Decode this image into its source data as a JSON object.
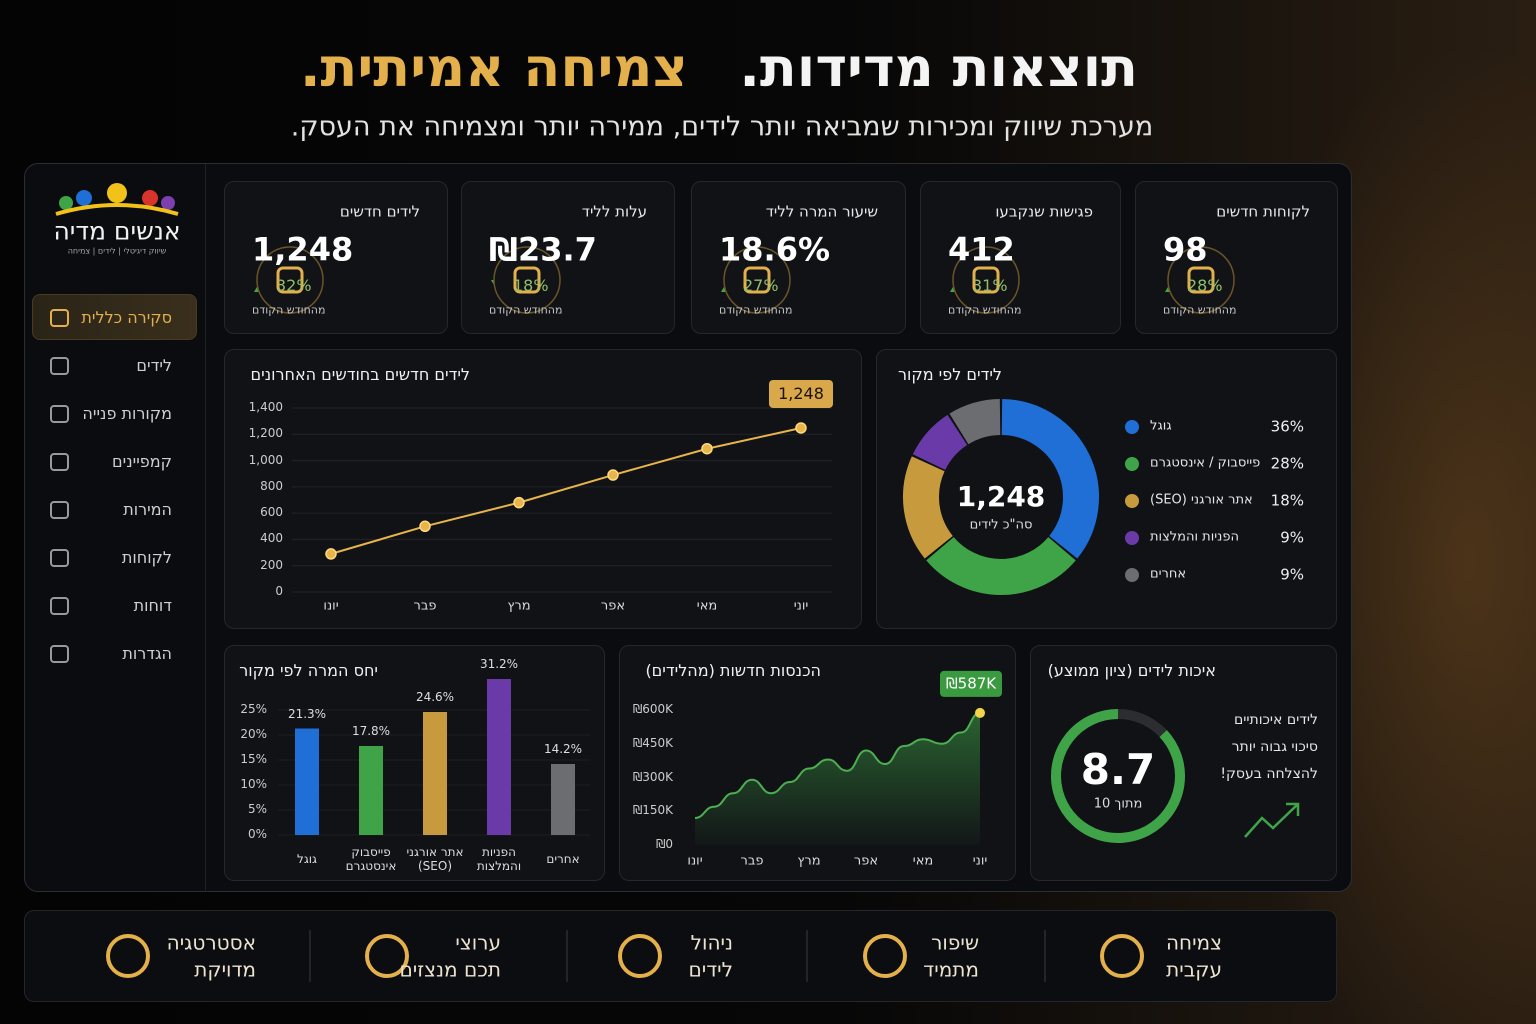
{
  "header": {
    "title_main": "תוצאות מדידות.",
    "title_accent": "צמיחה אמיתית.",
    "subtitle": "מערכת שיווק ומכירות שמביאה יותר לידים, ממירה יותר ומצמיחה את העסק."
  },
  "logo": {
    "name": "אנשים מדיה",
    "tagline": "שיווק דיגיטלי | לידים | צמיחה"
  },
  "sidebar": {
    "items": [
      "סקירה כללית",
      "לידים",
      "מקורות פנייה",
      "קמפיינים",
      "המירות",
      "לקוחות",
      "דוחות",
      "הגדרות"
    ],
    "active": 0
  },
  "kpis": [
    {
      "title": "לקוחות חדשים",
      "value": "98",
      "change": "28%",
      "direction": "up",
      "caption": "מהחודש הקודם"
    },
    {
      "title": "פגישות שנקבעו",
      "value": "412",
      "change": "31%",
      "direction": "up",
      "caption": "מהחודש הקודם"
    },
    {
      "title": "שיעור המרה לליד",
      "value": "18.6%",
      "change": "27%",
      "direction": "up",
      "caption": "מהחודש הקודם"
    },
    {
      "title": "עלות לליד",
      "value": "₪23.7",
      "change": "18%",
      "direction": "down",
      "caption": "מהחודש הקודם"
    },
    {
      "title": "לידים חדשים",
      "value": "1,248",
      "change": "32%",
      "direction": "up",
      "caption": "מהחודש הקודם"
    }
  ],
  "chart_data": [
    {
      "type": "line",
      "title": "לידים חדשים בחודשים האחרונים",
      "categories": [
        "יונו",
        "פבר",
        "מרץ",
        "אפר",
        "מאי",
        "יוני"
      ],
      "values": [
        290,
        500,
        680,
        890,
        1090,
        1248
      ],
      "value_labels": [
        null,
        null,
        null,
        null,
        null,
        "1,248"
      ],
      "color": "#e8b54a",
      "ylim": [
        0,
        1400
      ],
      "yticks": [
        0,
        200,
        400,
        600,
        800,
        {
          "value": 1000,
          "label": "1,000"
        },
        {
          "value": 1200,
          "label": "1,200"
        },
        {
          "value": 1400,
          "label": "1,400"
        }
      ],
      "grid": true
    },
    {
      "type": "donut",
      "title": "לידים לפי מקור",
      "center_label": "1,248",
      "center_caption": "סה\"כ לידים",
      "categories": [
        "גוגל",
        "פייסבוק / אינסטגרם",
        "אתר אורגני (SEO)",
        "הפניות והמלצות",
        "אחרים"
      ],
      "values": [
        36,
        28,
        18,
        9,
        9
      ],
      "value_labels": [
        "36%",
        "28%",
        "18%",
        "9%",
        "9%"
      ],
      "colors": [
        "#1f6fd6",
        "#3fa447",
        "#c89a3e",
        "#6a3ba8",
        "#6b6d70"
      ]
    },
    {
      "type": "bar",
      "title": "יחס המרה לפי מקור",
      "categories": [
        "גוגל",
        "פייסבוק אינסטגרם",
        "אתר אורגני (SEO)",
        "הפניות והמלצות",
        "אחרים"
      ],
      "values": [
        21.3,
        17.8,
        24.6,
        31.2,
        14.2
      ],
      "value_labels": [
        "21.3%",
        "17.8%",
        "24.6%",
        "31.2%",
        "14.2%"
      ],
      "colors": [
        "#1f6fd6",
        "#3fa447",
        "#c89a3e",
        "#6a3ba8",
        "#6b6d70"
      ],
      "ylim": [
        0,
        32
      ],
      "yticks": [
        {
          "value": 0,
          "label": "0%"
        },
        {
          "value": 5,
          "label": "5%"
        },
        {
          "value": 10,
          "label": "10%"
        },
        {
          "value": 15,
          "label": "15%"
        },
        {
          "value": 20,
          "label": "20%"
        },
        {
          "value": 25,
          "label": "25%"
        }
      ],
      "grid": true
    },
    {
      "type": "area",
      "title": "הכנסות חדשות (מהלידים)",
      "categories": [
        "יונו",
        null,
        null,
        "פבר",
        null,
        null,
        "מרץ",
        null,
        null,
        "אפר",
        null,
        null,
        "מאי",
        null,
        null,
        "יוני"
      ],
      "values": [
        120000,
        170000,
        230000,
        290000,
        230000,
        280000,
        340000,
        380000,
        330000,
        420000,
        360000,
        440000,
        470000,
        450000,
        500000,
        587000
      ],
      "value_labels": [
        null,
        null,
        null,
        null,
        null,
        null,
        null,
        null,
        null,
        null,
        null,
        null,
        null,
        null,
        null,
        "₪587K"
      ],
      "color": "#4caf50",
      "ylim": [
        0,
        600000
      ],
      "yticks": [
        {
          "value": 0,
          "label": "₪0"
        },
        {
          "value": 150000,
          "label": "₪150K"
        },
        {
          "value": 300000,
          "label": "₪300K"
        },
        {
          "value": 450000,
          "label": "₪450K"
        },
        {
          "value": 600000,
          "label": "₪600K"
        }
      ],
      "grid": false
    }
  ],
  "quality": {
    "title": "איכות לידים (ציון ממוצע)",
    "score": 8.7,
    "max": 10,
    "score_caption": "מתוך 10",
    "lines": [
      "לידים איכותיים",
      "סיכוי גבוה יותר",
      "להצלחה בעסק!"
    ]
  },
  "features": [
    {
      "line1": "צמיחה",
      "line2": "עקבית"
    },
    {
      "line1": "שיפור",
      "line2": "מתמיד"
    },
    {
      "line1": "ניהול",
      "line2": "לידים"
    },
    {
      "line1": "ערוצי",
      "line2": "תכם מנצזים"
    },
    {
      "line1": "אסטרטגיה",
      "line2": "מדויקת"
    }
  ]
}
